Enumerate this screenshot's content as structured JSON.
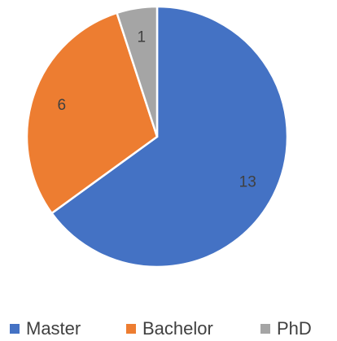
{
  "chart_data": {
    "type": "pie",
    "categories": [
      "Master",
      "Bachelor",
      "PhD"
    ],
    "values": [
      13,
      6,
      1
    ],
    "colors": [
      "#4472c4",
      "#ed7d31",
      "#a5a5a5"
    ],
    "legend": "bottom"
  }
}
